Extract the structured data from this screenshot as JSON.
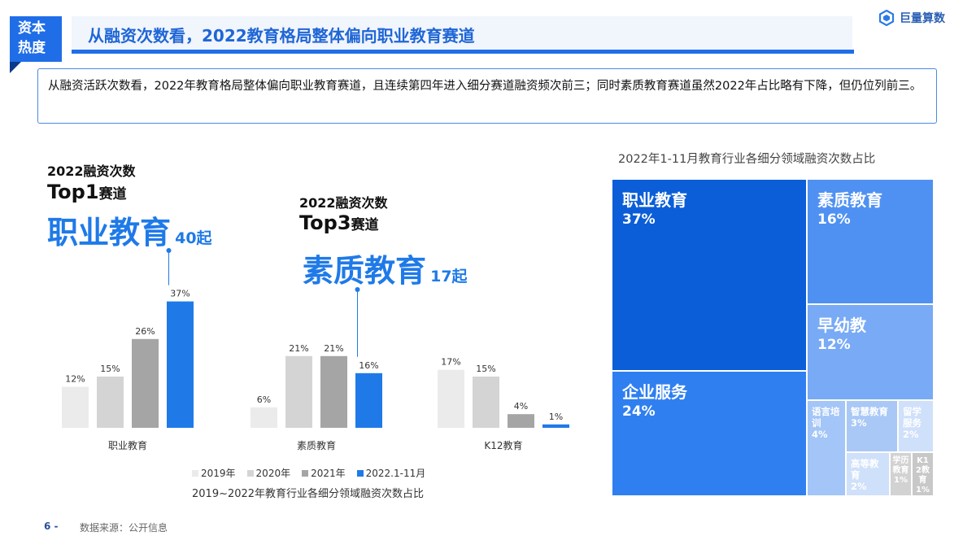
{
  "header": {
    "tag_line1": "资本",
    "tag_line2": "热度",
    "title": "从融资次数看，2022教育格局整体偏向职业教育赛道",
    "logo_text": "巨量算数",
    "accent": "#1f6ee8"
  },
  "summary": {
    "text": "从融资活跃次数看，2022年教育格局整体偏向职业教育赛道，且连续第四年进入细分赛道融资频次前三；同时素质教育赛道虽然2022年占比略有下降，但仍位列前三。"
  },
  "callout1": {
    "line1": "2022融资次数",
    "top": "Top1",
    "top_suffix": "赛道",
    "name": "职业教育",
    "count": "40起"
  },
  "callout2": {
    "line1": "2022融资次数",
    "top": "Top3",
    "top_suffix": "赛道",
    "name": "素质教育",
    "count": "17起"
  },
  "chart_data": [
    {
      "type": "bar",
      "title": "2019~2022年教育行业各细分领域融资次数占比",
      "categories": [
        "职业教育",
        "素质教育",
        "K12教育"
      ],
      "series": [
        {
          "name": "2019年",
          "values": [
            12,
            6,
            17
          ],
          "color": "#ebebeb"
        },
        {
          "name": "2020年",
          "values": [
            15,
            21,
            15
          ],
          "color": "#d4d4d4"
        },
        {
          "name": "2021年",
          "values": [
            26,
            21,
            4
          ],
          "color": "#a5a5a5"
        },
        {
          "name": "2022.1-11月",
          "values": [
            37,
            16,
            1
          ],
          "color": "#1f7ae8"
        }
      ],
      "value_suffix": "%",
      "ylim": [
        0,
        40
      ],
      "legend_position": "bottom"
    },
    {
      "type": "treemap",
      "title": "2022年1-11月教育行业各细分领域融资次数占比",
      "items": [
        {
          "name": "职业教育",
          "value": "37%",
          "color": "#0b5ed7"
        },
        {
          "name": "企业服务",
          "value": "24%",
          "color": "#2f7ff0"
        },
        {
          "name": "素质教育",
          "value": "16%",
          "color": "#4f91f2"
        },
        {
          "name": "早幼教",
          "value": "12%",
          "color": "#78aaf5"
        },
        {
          "name": "语言培训",
          "value": "4%",
          "color": "#a3c5f7"
        },
        {
          "name": "智慧教育",
          "value": "3%",
          "color": "#a9c8f6"
        },
        {
          "name": "留学服务",
          "value": "2%",
          "color": "#cfe0fa"
        },
        {
          "name": "高等教育",
          "value": "2%",
          "color": "#cfe0fa"
        },
        {
          "name": "学历教育",
          "value": "1%",
          "color": "#d2d2d2"
        },
        {
          "name": "K12教育",
          "value": "1%",
          "color": "#c8c8c8"
        }
      ]
    }
  ],
  "footer": {
    "page": "6",
    "source": "数据来源：公开信息"
  }
}
